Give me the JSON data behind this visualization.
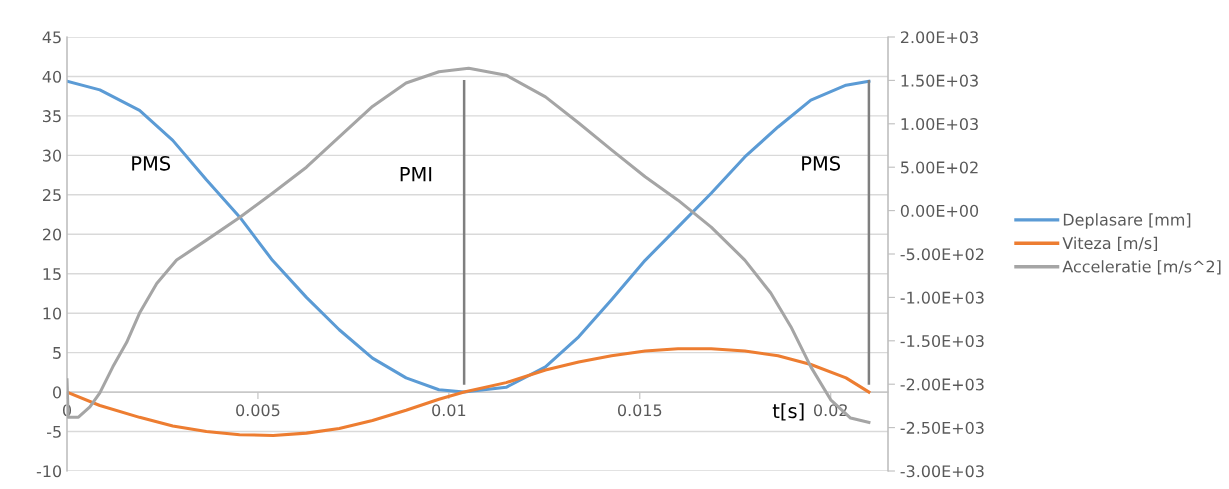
{
  "chart_data": {
    "type": "line",
    "xlabel": "t[s]",
    "xlim": [
      0,
      0.0215
    ],
    "xticks": [
      0,
      0.005,
      0.01,
      0.015,
      0.02
    ],
    "ylim": [
      -10,
      45
    ],
    "yticks": [
      -10,
      -5,
      0,
      5,
      10,
      15,
      20,
      25,
      30,
      35,
      40,
      45
    ],
    "y2lim": [
      -3000,
      2000
    ],
    "y2ticks": [
      {
        "value": -3000,
        "label": "-3.00E+03"
      },
      {
        "value": -2500,
        "label": "-2.50E+03"
      },
      {
        "value": -2000,
        "label": "-2.00E+03"
      },
      {
        "value": -1500,
        "label": "-1.50E+03"
      },
      {
        "value": -1000,
        "label": "-1.00E+03"
      },
      {
        "value": -500,
        "label": "-5.00E+02"
      },
      {
        "value": 0,
        "label": "0.00E+00"
      },
      {
        "value": 500,
        "label": "5.00E+02"
      },
      {
        "value": 1000,
        "label": "1.00E+03"
      },
      {
        "value": 1500,
        "label": "1.50E+03"
      },
      {
        "value": 2000,
        "label": "2.00E+03"
      }
    ],
    "grid": "y",
    "legend": "right",
    "line_style": "solid",
    "marker": "none",
    "series": [
      {
        "name": "Deplasare [mm]",
        "color": "#5b9bd5",
        "x": [
          0,
          0.00086,
          0.0019,
          0.00277,
          0.00365,
          0.00452,
          0.00538,
          0.00627,
          0.00713,
          0.008,
          0.00888,
          0.00974,
          0.0104,
          0.0115,
          0.01253,
          0.0134,
          0.01426,
          0.01514,
          0.016,
          0.01687,
          0.01775,
          0.01862,
          0.01948,
          0.0204,
          0.021
        ],
        "values": [
          39.4,
          38.3,
          35.7,
          31.9,
          26.9,
          22.2,
          16.7,
          12.0,
          7.9,
          4.3,
          1.8,
          0.3,
          0,
          0.6,
          3.2,
          7.0,
          11.7,
          16.7,
          20.9,
          25.2,
          29.8,
          33.6,
          37.0,
          38.9,
          39.4
        ]
      },
      {
        "name": "Viteza [m/s]",
        "color": "#ed7d31",
        "x": [
          0,
          0.00086,
          0.0019,
          0.00277,
          0.00365,
          0.00452,
          0.0054,
          0.00627,
          0.00713,
          0.008,
          0.00888,
          0.00974,
          0.0104,
          0.0115,
          0.01253,
          0.0134,
          0.01426,
          0.01514,
          0.016,
          0.01687,
          0.01775,
          0.01862,
          0.01948,
          0.0204,
          0.021
        ],
        "values": [
          0,
          -1.7,
          -3.2,
          -4.3,
          -5.0,
          -5.4,
          -5.5,
          -5.2,
          -4.6,
          -3.6,
          -2.3,
          -0.9,
          0,
          1.2,
          2.8,
          3.8,
          4.6,
          5.2,
          5.5,
          5.5,
          5.2,
          4.6,
          3.5,
          1.8,
          0
        ]
      },
      {
        "name": "Acceleratie [m/s^2]",
        "color": "#a5a5a5",
        "axis": "y2",
        "x": [
          0,
          3e-05,
          0.0003,
          0.0006,
          0.00086,
          0.0012,
          0.00156,
          0.0019,
          0.00235,
          0.00287,
          0.00365,
          0.00452,
          0.00538,
          0.00627,
          0.00713,
          0.008,
          0.00888,
          0.00974,
          0.01052,
          0.0115,
          0.01253,
          0.0134,
          0.01426,
          0.01514,
          0.016,
          0.01687,
          0.01775,
          0.01843,
          0.01896,
          0.01948,
          0.02,
          0.02052,
          0.021
        ],
        "values": [
          -1950,
          -2380,
          -2380,
          -2260,
          -2100,
          -1800,
          -1520,
          -1180,
          -840,
          -570,
          -340,
          -80,
          200,
          500,
          850,
          1200,
          1470,
          1600,
          1640,
          1560,
          1310,
          1010,
          700,
          390,
          120,
          -190,
          -570,
          -950,
          -1340,
          -1800,
          -2180,
          -2390,
          -2440
        ]
      },
      {
        "color": "#7f7f7f",
        "x": [
          0.0104,
          0.0104
        ],
        "values": [
          1.1,
          39.4
        ]
      },
      {
        "color": "#7f7f7f",
        "x": [
          0.021,
          0.021
        ],
        "values": [
          1.1,
          39.4
        ]
      }
    ],
    "annotations": [
      "PMS",
      "PMI",
      "PMS"
    ]
  }
}
